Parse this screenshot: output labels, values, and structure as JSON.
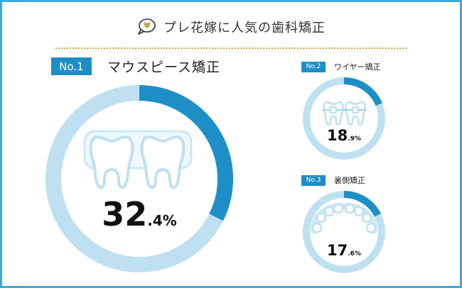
{
  "title": "プレ花嫁に人気の歯科矯正",
  "colors": {
    "accent": "#1d8fc6",
    "track": "#bfe0f0",
    "frame": "#3ea9d6",
    "divider": "#c9a04c"
  },
  "icons": {
    "title": "heart-speech-bubble-icon",
    "rank1": "aligner-teeth-icon",
    "rank2": "braces-teeth-icon",
    "rank3": "lingual-arch-icon"
  },
  "chart_data": [
    {
      "type": "pie",
      "rank": "No.1",
      "label": "マウスピース矯正",
      "value": 32.4,
      "integer": "32",
      "decimal": ".4",
      "unit": "%"
    },
    {
      "type": "pie",
      "rank": "No.2",
      "label": "ワイヤー矯正",
      "value": 18.9,
      "integer": "18",
      "decimal": ".9",
      "unit": "%"
    },
    {
      "type": "pie",
      "rank": "No.3",
      "label": "裏側矯正",
      "value": 17.6,
      "integer": "17",
      "decimal": ".6",
      "unit": "%"
    }
  ]
}
